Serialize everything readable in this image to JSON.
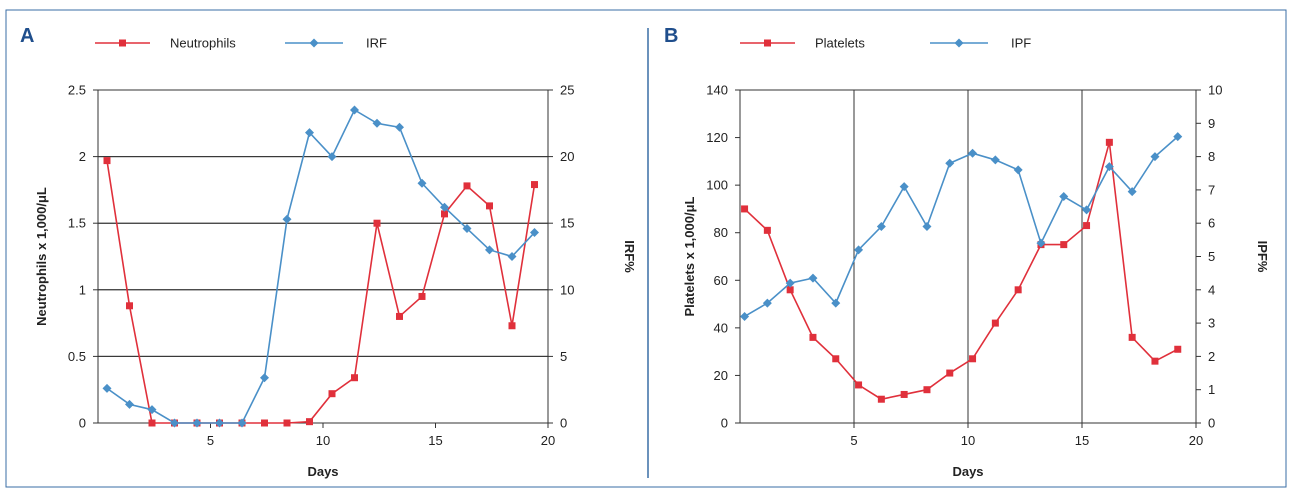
{
  "colors": {
    "red": "#e0303b",
    "blue": "#4a90c8",
    "frame": "#3a6ea5"
  },
  "chart_data": [
    {
      "panel": "A",
      "type": "line",
      "x_axis": {
        "label": "Days",
        "range": [
          0,
          20
        ],
        "ticks": [
          5,
          10,
          15,
          20
        ]
      },
      "y_left": {
        "label": "Neutrophils x 1,000/μL",
        "range": [
          0,
          2.5
        ],
        "ticks": [
          0,
          0.5,
          1,
          1.5,
          2,
          2.5
        ],
        "tick_labels": [
          "0",
          "0.5",
          "1",
          "1.5",
          "2",
          "2.5"
        ]
      },
      "y_right": {
        "label": "IRF%",
        "range": [
          0,
          25
        ],
        "ticks": [
          0,
          5,
          10,
          15,
          20,
          25
        ]
      },
      "gridlines": "horizontal",
      "legend_position": "top",
      "series": [
        {
          "name": "Neutrophils",
          "axis": "left",
          "color": "#e0303b",
          "marker": "square",
          "x": [
            0.4,
            1.4,
            2.4,
            3.4,
            4.4,
            5.4,
            6.4,
            7.4,
            8.4,
            9.4,
            10.4,
            11.4,
            12.4,
            13.4,
            14.4,
            15.4,
            16.4,
            17.4,
            18.4,
            19.4
          ],
          "y": [
            1.97,
            0.88,
            0,
            0,
            0,
            0,
            0,
            0,
            0,
            0.01,
            0.22,
            0.34,
            1.5,
            0.8,
            0.95,
            1.57,
            1.78,
            1.63,
            0.73,
            1.79
          ]
        },
        {
          "name": "IRF",
          "axis": "right",
          "color": "#4a90c8",
          "marker": "diamond",
          "x": [
            0.4,
            1.4,
            2.4,
            3.4,
            4.4,
            5.4,
            6.4,
            7.4,
            8.4,
            9.4,
            10.4,
            11.4,
            12.4,
            13.4,
            14.4,
            15.4,
            16.4,
            17.4,
            18.4,
            19.4
          ],
          "y": [
            2.6,
            1.4,
            1.0,
            0,
            0,
            0,
            0,
            3.4,
            15.3,
            21.8,
            20,
            23.5,
            22.5,
            22.2,
            18,
            16.2,
            14.6,
            13,
            12.5,
            14.3
          ]
        }
      ]
    },
    {
      "panel": "B",
      "type": "line",
      "x_axis": {
        "label": "Days",
        "range": [
          0,
          20
        ],
        "ticks": [
          5,
          10,
          15,
          20
        ]
      },
      "y_left": {
        "label": "Platelets x 1,000/μL",
        "range": [
          0,
          140
        ],
        "ticks": [
          0,
          20,
          40,
          60,
          80,
          100,
          120,
          140
        ]
      },
      "y_right": {
        "label": "IPF%",
        "range": [
          0,
          10
        ],
        "ticks": [
          0,
          1,
          2,
          3,
          4,
          5,
          6,
          7,
          8,
          9,
          10
        ]
      },
      "gridlines": "vertical",
      "vertical_gridlines_at": [
        5,
        10,
        15
      ],
      "legend_position": "top",
      "series": [
        {
          "name": "Platelets",
          "axis": "left",
          "color": "#e0303b",
          "marker": "square",
          "x": [
            0.2,
            1.2,
            2.2,
            3.2,
            4.2,
            5.2,
            6.2,
            7.2,
            8.2,
            9.2,
            10.2,
            11.2,
            12.2,
            13.2,
            14.2,
            15.2,
            16.2,
            17.2,
            18.2,
            19.2
          ],
          "y": [
            90,
            81,
            56,
            36,
            27,
            16,
            10,
            12,
            14,
            21,
            27,
            42,
            56,
            75,
            75,
            83,
            118,
            36,
            26,
            31
          ]
        },
        {
          "name": "IPF",
          "axis": "right",
          "color": "#4a90c8",
          "marker": "diamond",
          "x": [
            0.2,
            1.2,
            2.2,
            3.2,
            4.2,
            5.2,
            6.2,
            7.2,
            8.2,
            9.2,
            10.2,
            11.2,
            12.2,
            13.2,
            14.2,
            15.2,
            16.2,
            17.2,
            18.2,
            19.2
          ],
          "y": [
            3.2,
            3.6,
            4.2,
            4.35,
            3.6,
            5.2,
            5.9,
            7.1,
            5.9,
            7.8,
            8.1,
            7.9,
            7.6,
            5.4,
            6.8,
            6.4,
            7.7,
            6.95,
            8.0,
            8.6
          ]
        }
      ]
    }
  ]
}
